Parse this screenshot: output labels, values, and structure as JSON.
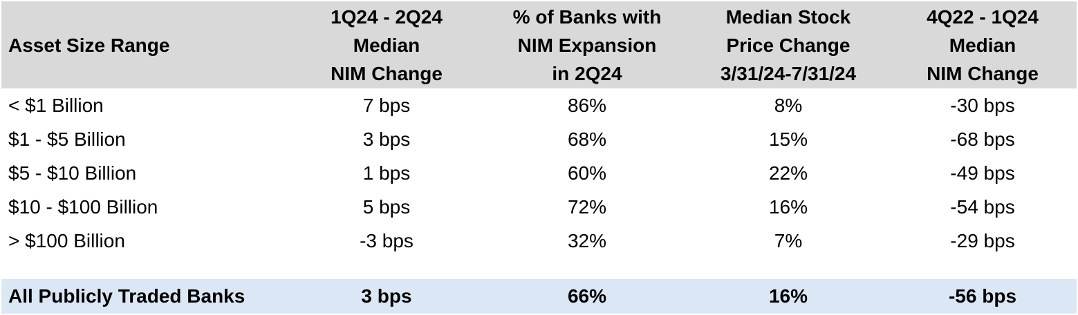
{
  "colors": {
    "header_bg": "#d9d9d9",
    "footer_bg": "#dbe7f4",
    "text": "#000000"
  },
  "table": {
    "headers": [
      [
        "Asset Size Range"
      ],
      [
        "1Q24 - 2Q24",
        "Median",
        "NIM Change"
      ],
      [
        "% of Banks with",
        "NIM Expansion",
        "in 2Q24"
      ],
      [
        "Median Stock",
        "Price Change",
        "3/31/24-7/31/24"
      ],
      [
        "4Q22 - 1Q24",
        "Median",
        "NIM Change"
      ]
    ],
    "rows": [
      [
        "< $1 Billion",
        "7 bps",
        "86%",
        "8%",
        "-30 bps"
      ],
      [
        "$1 - $5 Billion",
        "3 bps",
        "68%",
        "15%",
        "-68 bps"
      ],
      [
        "$5 - $10 Billion",
        "1 bps",
        "60%",
        "22%",
        "-49 bps"
      ],
      [
        "$10 - $100 Billion",
        "5 bps",
        "72%",
        "16%",
        "-54 bps"
      ],
      [
        "> $100 Billion",
        "-3 bps",
        "32%",
        "7%",
        "-29 bps"
      ]
    ],
    "footer": [
      "All Publicly Traded Banks",
      "3 bps",
      "66%",
      "16%",
      "-56 bps"
    ]
  },
  "chart_data": {
    "type": "table",
    "title": "",
    "columns": [
      "Asset Size Range",
      "1Q24 - 2Q24 Median NIM Change",
      "% of Banks with NIM Expansion in 2Q24",
      "Median Stock Price Change 3/31/24-7/31/24",
      "4Q22 - 1Q24 Median NIM Change"
    ],
    "rows": [
      {
        "asset_size_range": "< $1 Billion",
        "nim_change_1q24_2q24_bps": 7,
        "pct_banks_nim_expansion_2q24": 86,
        "median_stock_price_change_pct": 8,
        "nim_change_4q22_1q24_bps": -30
      },
      {
        "asset_size_range": "$1 - $5 Billion",
        "nim_change_1q24_2q24_bps": 3,
        "pct_banks_nim_expansion_2q24": 68,
        "median_stock_price_change_pct": 15,
        "nim_change_4q22_1q24_bps": -68
      },
      {
        "asset_size_range": "$5 - $10 Billion",
        "nim_change_1q24_2q24_bps": 1,
        "pct_banks_nim_expansion_2q24": 60,
        "median_stock_price_change_pct": 22,
        "nim_change_4q22_1q24_bps": -49
      },
      {
        "asset_size_range": "$10 - $100 Billion",
        "nim_change_1q24_2q24_bps": 5,
        "pct_banks_nim_expansion_2q24": 72,
        "median_stock_price_change_pct": 16,
        "nim_change_4q22_1q24_bps": -54
      },
      {
        "asset_size_range": "> $100 Billion",
        "nim_change_1q24_2q24_bps": -3,
        "pct_banks_nim_expansion_2q24": 32,
        "median_stock_price_change_pct": 7,
        "nim_change_4q22_1q24_bps": -29
      }
    ],
    "summary_row": {
      "asset_size_range": "All Publicly Traded Banks",
      "nim_change_1q24_2q24_bps": 3,
      "pct_banks_nim_expansion_2q24": 66,
      "median_stock_price_change_pct": 16,
      "nim_change_4q22_1q24_bps": -56
    }
  }
}
